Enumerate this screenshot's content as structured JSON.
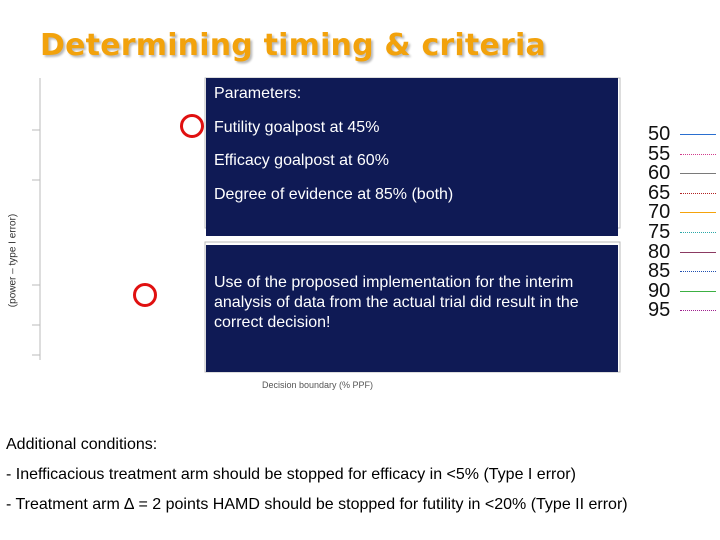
{
  "title": "Determining timing & criteria",
  "overlay_top": {
    "heading": "Parameters:",
    "lines": [
      "Futility goalpost at 45%",
      "Efficacy goalpost at 60%",
      "Degree of evidence at 85% (both)"
    ]
  },
  "overlay_bottom": {
    "text": "Use of the proposed implementation for the interim analysis of data from the actual trial did result in the correct decision!"
  },
  "chart": {
    "y_label": "(power – type I error)",
    "x_label": "Decision boundary (% PPF)",
    "legend": [
      "50",
      "55",
      "60",
      "65",
      "70",
      "75",
      "80",
      "85",
      "90",
      "95"
    ],
    "legend_colors": [
      "#2a6fd0",
      "#d23c8c",
      "#7a7a7a",
      "#b22222",
      "#f5a30b",
      "#2aa8a8",
      "#8b3a62",
      "#1f4fb0",
      "#3cb043",
      "#a02090"
    ]
  },
  "additional": {
    "heading": "Additional conditions:",
    "items": [
      "- Inefficacious treatment arm should be stopped for efficacy in <5% (Type I error)",
      "- Treatment arm ∆ = 2 points HAMD should be stopped for futility in <20% (Type II error)"
    ]
  }
}
